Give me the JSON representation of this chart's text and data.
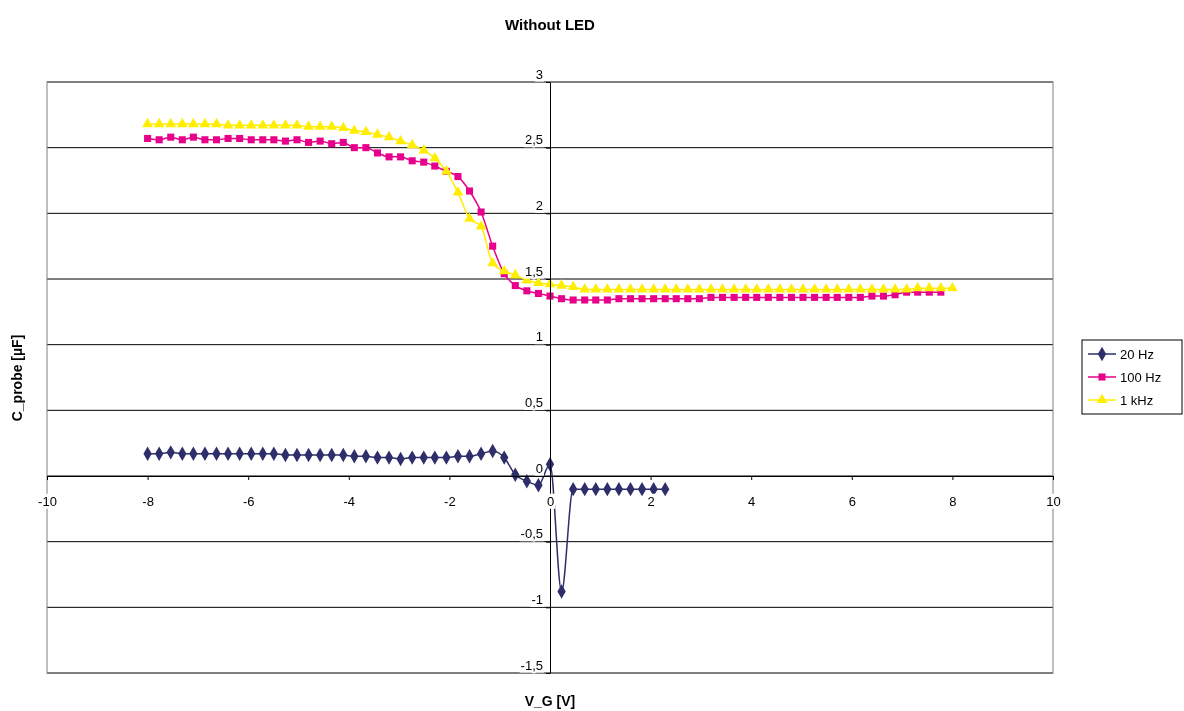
{
  "chart_data": {
    "type": "line",
    "title": "Without LED",
    "xlabel": "V_G [V]",
    "ylabel": "C_probe [µF]",
    "xlim": [
      -10,
      10
    ],
    "xticks": [
      -10,
      -8,
      -6,
      -4,
      -2,
      0,
      2,
      4,
      6,
      8,
      10
    ],
    "ylim": [
      -1.5,
      3
    ],
    "yticks": [
      {
        "value": -1.5,
        "label": "-1,5"
      },
      -1,
      {
        "value": -0.5,
        "label": "-0,5"
      },
      0,
      {
        "value": 0.5,
        "label": "0,5"
      },
      1,
      {
        "value": 1.5,
        "label": "1,5"
      },
      2,
      {
        "value": 2.5,
        "label": "2,5"
      },
      3
    ],
    "grid": "y",
    "legend": "right",
    "line_style": "solid",
    "series": [
      {
        "name": "20 Hz",
        "color": "#2e2e6b",
        "marker": "diamond",
        "x": [
          -8,
          -7.77,
          -7.54,
          -7.31,
          -7.09,
          -6.86,
          -6.63,
          -6.4,
          -6.17,
          -5.94,
          -5.71,
          -5.49,
          -5.26,
          -5.03,
          -4.8,
          -4.57,
          -4.34,
          -4.11,
          -3.89,
          -3.66,
          -3.43,
          -3.2,
          -2.97,
          -2.74,
          -2.51,
          -2.29,
          -2.06,
          -1.83,
          -1.6,
          -1.37,
          -1.14,
          -0.91,
          -0.69,
          -0.46,
          -0.23,
          0,
          0.23,
          0.46,
          0.69,
          0.91,
          1.14,
          1.37,
          1.6,
          1.83,
          2.06,
          2.29
        ],
        "values": [
          0.17,
          0.17,
          0.18,
          0.17,
          0.17,
          0.17,
          0.17,
          0.17,
          0.17,
          0.17,
          0.17,
          0.17,
          0.16,
          0.16,
          0.16,
          0.16,
          0.16,
          0.16,
          0.15,
          0.15,
          0.14,
          0.14,
          0.13,
          0.14,
          0.14,
          0.14,
          0.14,
          0.15,
          0.15,
          0.17,
          0.19,
          0.14,
          0.01,
          -0.04,
          -0.07,
          0.09,
          -0.88,
          -0.1,
          -0.1,
          -0.1,
          -0.1,
          -0.1,
          -0.1,
          -0.1,
          -0.1,
          -0.1
        ]
      },
      {
        "name": "100 Hz",
        "color": "#e6008a",
        "marker": "square",
        "x": [
          -8,
          -7.77,
          -7.54,
          -7.31,
          -7.09,
          -6.86,
          -6.63,
          -6.4,
          -6.17,
          -5.94,
          -5.71,
          -5.49,
          -5.26,
          -5.03,
          -4.8,
          -4.57,
          -4.34,
          -4.11,
          -3.89,
          -3.66,
          -3.43,
          -3.2,
          -2.97,
          -2.74,
          -2.51,
          -2.29,
          -2.06,
          -1.83,
          -1.6,
          -1.37,
          -1.14,
          -0.91,
          -0.69,
          -0.46,
          -0.23,
          0,
          0.23,
          0.46,
          0.69,
          0.91,
          1.14,
          1.37,
          1.6,
          1.83,
          2.06,
          2.29,
          2.51,
          2.74,
          2.97,
          3.2,
          3.43,
          3.66,
          3.89,
          4.11,
          4.34,
          4.57,
          4.8,
          5.03,
          5.26,
          5.49,
          5.71,
          5.94,
          6.17,
          6.4,
          6.63,
          6.86,
          7.09,
          7.31,
          7.54,
          7.77
        ],
        "values": [
          2.57,
          2.56,
          2.58,
          2.56,
          2.58,
          2.56,
          2.56,
          2.57,
          2.57,
          2.56,
          2.56,
          2.56,
          2.55,
          2.56,
          2.54,
          2.55,
          2.53,
          2.54,
          2.5,
          2.5,
          2.46,
          2.43,
          2.43,
          2.4,
          2.39,
          2.36,
          2.32,
          2.28,
          2.17,
          2.01,
          1.75,
          1.54,
          1.45,
          1.41,
          1.39,
          1.37,
          1.35,
          1.34,
          1.34,
          1.34,
          1.34,
          1.35,
          1.35,
          1.35,
          1.35,
          1.35,
          1.35,
          1.35,
          1.35,
          1.36,
          1.36,
          1.36,
          1.36,
          1.36,
          1.36,
          1.36,
          1.36,
          1.36,
          1.36,
          1.36,
          1.36,
          1.36,
          1.36,
          1.37,
          1.37,
          1.38,
          1.4,
          1.4,
          1.4,
          1.4
        ]
      },
      {
        "name": "1 kHz",
        "color": "#ffee00",
        "marker": "triangle",
        "x": [
          -8,
          -7.77,
          -7.54,
          -7.31,
          -7.09,
          -6.86,
          -6.63,
          -6.4,
          -6.17,
          -5.94,
          -5.71,
          -5.49,
          -5.26,
          -5.03,
          -4.8,
          -4.57,
          -4.34,
          -4.11,
          -3.89,
          -3.66,
          -3.43,
          -3.2,
          -2.97,
          -2.74,
          -2.51,
          -2.29,
          -2.06,
          -1.83,
          -1.6,
          -1.37,
          -1.14,
          -0.91,
          -0.69,
          -0.46,
          -0.23,
          0,
          0.23,
          0.46,
          0.69,
          0.91,
          1.14,
          1.37,
          1.6,
          1.83,
          2.06,
          2.29,
          2.51,
          2.74,
          2.97,
          3.2,
          3.43,
          3.66,
          3.89,
          4.11,
          4.34,
          4.57,
          4.8,
          5.03,
          5.26,
          5.49,
          5.71,
          5.94,
          6.17,
          6.4,
          6.63,
          6.86,
          7.09,
          7.31,
          7.54,
          7.77,
          8
        ],
        "values": [
          2.68,
          2.68,
          2.68,
          2.68,
          2.68,
          2.68,
          2.68,
          2.67,
          2.67,
          2.67,
          2.67,
          2.67,
          2.67,
          2.67,
          2.66,
          2.66,
          2.66,
          2.65,
          2.63,
          2.62,
          2.6,
          2.58,
          2.55,
          2.52,
          2.48,
          2.42,
          2.32,
          2.16,
          1.96,
          1.9,
          1.62,
          1.56,
          1.53,
          1.49,
          1.47,
          1.46,
          1.45,
          1.44,
          1.42,
          1.42,
          1.42,
          1.42,
          1.42,
          1.42,
          1.42,
          1.42,
          1.42,
          1.42,
          1.42,
          1.42,
          1.42,
          1.42,
          1.42,
          1.42,
          1.42,
          1.42,
          1.42,
          1.42,
          1.42,
          1.42,
          1.42,
          1.42,
          1.42,
          1.42,
          1.42,
          1.42,
          1.42,
          1.43,
          1.43,
          1.43,
          1.43
        ]
      }
    ]
  }
}
